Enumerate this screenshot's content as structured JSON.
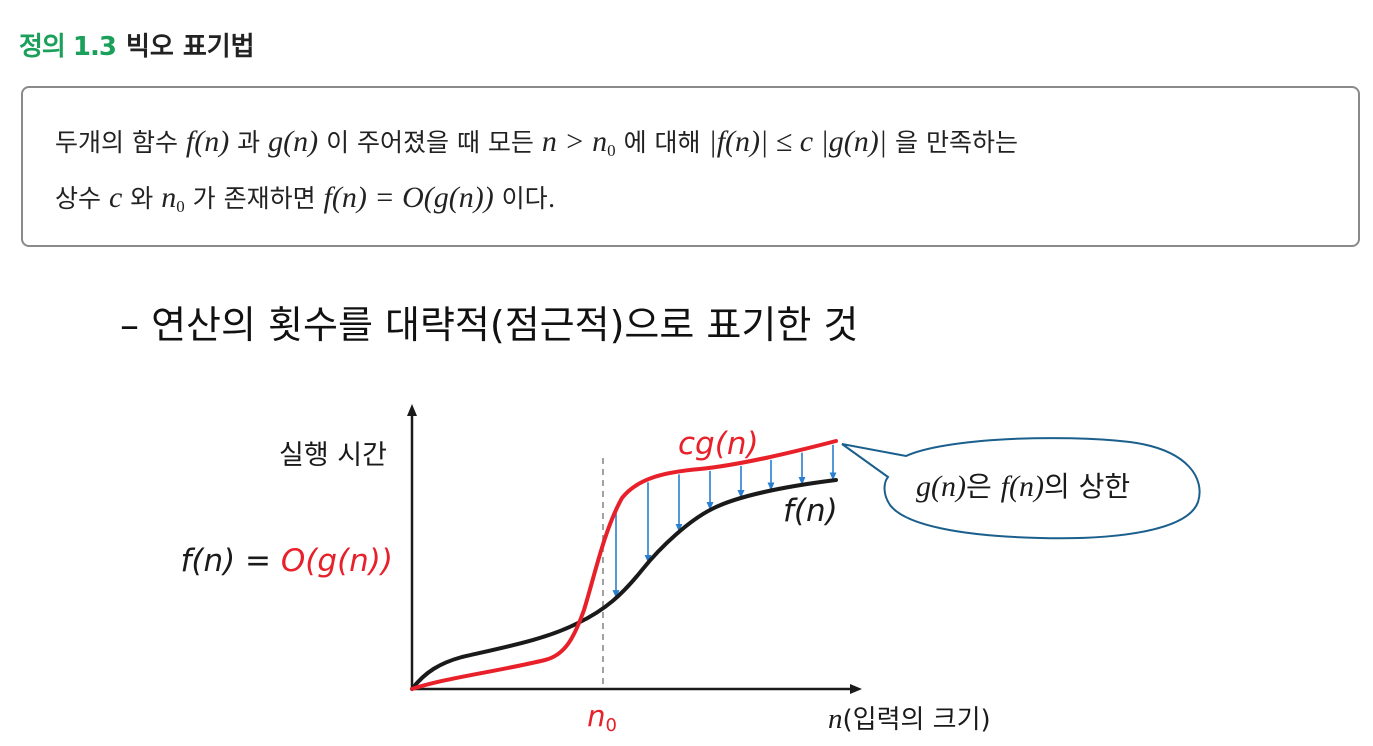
{
  "definition": {
    "number": "정의 1.3",
    "name": "빅오 표기법",
    "line1": [
      {
        "t": "두개의 함수 ",
        "m": false
      },
      {
        "t": "f(n)",
        "m": true
      },
      {
        "t": " 과 ",
        "m": false
      },
      {
        "t": "g(n)",
        "m": true
      },
      {
        "t": " 이 주어졌을 때 모든 ",
        "m": false
      },
      {
        "t": "n > n",
        "m": true,
        "sub": "0"
      },
      {
        "t": " 에 대해 ",
        "m": false
      },
      {
        "t": "|f(n)| ≤ c |g(n)|",
        "m": true
      },
      {
        "t": " 을 만족하는",
        "m": false
      }
    ],
    "line2": [
      {
        "t": "상수 ",
        "m": false
      },
      {
        "t": "c",
        "m": true
      },
      {
        "t": " 와 ",
        "m": false
      },
      {
        "t": "n",
        "m": true,
        "sub": "0"
      },
      {
        "t": " 가 존재하면 ",
        "m": false
      },
      {
        "t": "f(n) = O(g(n))",
        "m": true
      },
      {
        "t": " 이다.",
        "m": false
      }
    ]
  },
  "bullet": "– 연산의 횟수를 대략적(점근적)으로 표기한 것",
  "diagram": {
    "y_axis_label": "실행 시간",
    "x_axis_label_math": "n",
    "x_axis_label_text": "(입력의 크기)",
    "n0_label": "n",
    "n0_sub": "0",
    "cg_label": "cg(n)",
    "f_label": "f(n)",
    "relation_black": "f(n) = ",
    "relation_red": "O(g(n))",
    "bubble_math1": "g(n)",
    "bubble_text1": "은 ",
    "bubble_math2": "f(n)",
    "bubble_text2": "의 상한",
    "colors": {
      "cg_curve": "#e8202a",
      "f_curve": "#1a1a1a",
      "arrows": "#2a7fd0",
      "bubble_fill": "#ffffff",
      "bubble_stroke": "#1b5f8c"
    }
  }
}
